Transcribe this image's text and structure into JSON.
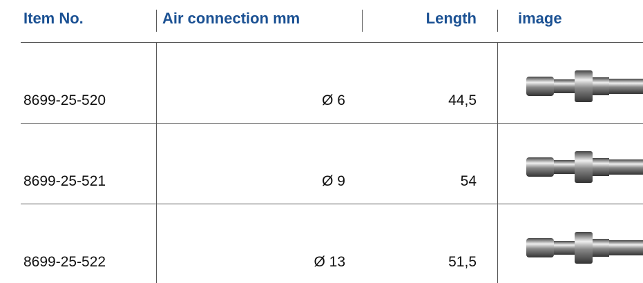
{
  "table": {
    "header": [
      "Item No.",
      "Air connection mm",
      "Length",
      "image"
    ],
    "rows": [
      [
        "8699-25-520",
        "Ø 6",
        "44,5"
      ],
      [
        "8699-25-521",
        "Ø 9",
        "54"
      ],
      [
        "8699-25-522",
        "Ø 13",
        "51,5"
      ]
    ]
  }
}
